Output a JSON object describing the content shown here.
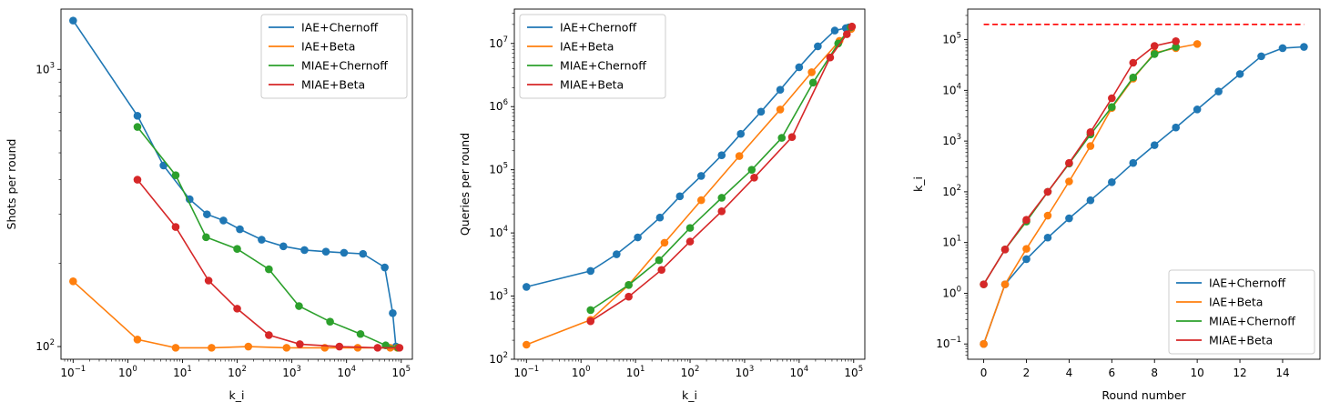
{
  "chart_data": [
    {
      "type": "line",
      "xlabel": "k_i",
      "ylabel": "Shots per round",
      "xscale": "log",
      "yscale": "log",
      "xlim": [
        0.06,
        160000
      ],
      "ylim": [
        90,
        1650
      ],
      "x_ticks": [
        {
          "base": "10",
          "exp": "−1",
          "value": 0.1
        },
        {
          "base": "10",
          "exp": "0",
          "value": 1
        },
        {
          "base": "10",
          "exp": "1",
          "value": 10
        },
        {
          "base": "10",
          "exp": "2",
          "value": 100
        },
        {
          "base": "10",
          "exp": "3",
          "value": 1000
        },
        {
          "base": "10",
          "exp": "4",
          "value": 10000
        },
        {
          "base": "10",
          "exp": "5",
          "value": 100000
        }
      ],
      "y_ticks": [
        {
          "base": "10",
          "exp": "2",
          "value": 100
        },
        {
          "base": "10",
          "exp": "3",
          "value": 1000
        }
      ],
      "legend_position": "upper right",
      "series": [
        {
          "name": "IAE+Chernoff",
          "color": "#1f77b4",
          "x": [
            0.1,
            1.5,
            4.5,
            13.5,
            28,
            56,
            112,
            280,
            700,
            1700,
            4200,
            9000,
            20000,
            50000,
            70000,
            80000
          ],
          "y": [
            1500,
            680,
            450,
            340,
            300,
            285,
            265,
            243,
            230,
            223,
            220,
            218,
            216,
            193,
            132,
            100
          ]
        },
        {
          "name": "IAE+Beta",
          "color": "#ff7f0e",
          "x": [
            0.1,
            1.5,
            7.5,
            34,
            160,
            800,
            4000,
            16000,
            63000,
            85000
          ],
          "y": [
            172,
            106,
            99,
            99,
            100,
            99,
            99,
            99,
            99,
            99
          ]
        },
        {
          "name": "MIAE+Chernoff",
          "color": "#2ca02c",
          "x": [
            1.5,
            7.5,
            27,
            100,
            380,
            1350,
            5000,
            18000,
            52000,
            88000
          ],
          "y": [
            620,
            415,
            248,
            225,
            190,
            140,
            123,
            111,
            101,
            99
          ]
        },
        {
          "name": "MIAE+Beta",
          "color": "#d62728",
          "x": [
            1.5,
            7.5,
            30,
            100,
            380,
            1400,
            7400,
            37000,
            93000
          ],
          "y": [
            400,
            270,
            173,
            137,
            110,
            102,
            100,
            99,
            99
          ]
        }
      ]
    },
    {
      "type": "line",
      "xlabel": "k_i",
      "ylabel": "Queries per round",
      "xscale": "log",
      "yscale": "log",
      "xlim": [
        0.06,
        160000
      ],
      "ylim": [
        100,
        35000000
      ],
      "x_ticks": [
        {
          "base": "10",
          "exp": "−1",
          "value": 0.1
        },
        {
          "base": "10",
          "exp": "0",
          "value": 1
        },
        {
          "base": "10",
          "exp": "1",
          "value": 10
        },
        {
          "base": "10",
          "exp": "2",
          "value": 100
        },
        {
          "base": "10",
          "exp": "3",
          "value": 1000
        },
        {
          "base": "10",
          "exp": "4",
          "value": 10000
        },
        {
          "base": "10",
          "exp": "5",
          "value": 100000
        }
      ],
      "y_ticks": [
        {
          "base": "10",
          "exp": "2",
          "value": 100
        },
        {
          "base": "10",
          "exp": "3",
          "value": 1000
        },
        {
          "base": "10",
          "exp": "4",
          "value": 10000
        },
        {
          "base": "10",
          "exp": "5",
          "value": 100000
        },
        {
          "base": "10",
          "exp": "6",
          "value": 1000000
        },
        {
          "base": "10",
          "exp": "7",
          "value": 10000000
        }
      ],
      "legend_position": "upper left",
      "series": [
        {
          "name": "IAE+Chernoff",
          "color": "#1f77b4",
          "x": [
            0.1,
            1.5,
            4.5,
            11,
            28,
            65,
            160,
            380,
            850,
            2000,
            4500,
            10000,
            22000,
            45000,
            72000,
            82000
          ],
          "y": [
            1400,
            2500,
            4600,
            8500,
            17500,
            38000,
            80000,
            170000,
            370000,
            830000,
            1850000,
            4200000,
            9000000,
            16000000,
            17500000,
            18000000
          ]
        },
        {
          "name": "IAE+Beta",
          "color": "#ff7f0e",
          "x": [
            0.1,
            1.5,
            7.5,
            34,
            160,
            800,
            4500,
            17000,
            55000,
            90000
          ],
          "y": [
            170,
            420,
            1500,
            7000,
            33000,
            165000,
            900000,
            3500000,
            11000000,
            17000000
          ]
        },
        {
          "name": "MIAE+Chernoff",
          "color": "#2ca02c",
          "x": [
            1.5,
            7.5,
            27,
            100,
            380,
            1350,
            4800,
            18000,
            52000,
            88000
          ],
          "y": [
            600,
            1500,
            3700,
            12000,
            36000,
            100000,
            320000,
            2400000,
            10000000,
            18000000
          ]
        },
        {
          "name": "MIAE+Beta",
          "color": "#d62728",
          "x": [
            1.5,
            7.5,
            30,
            100,
            380,
            1500,
            7400,
            37000,
            75000,
            93000
          ],
          "y": [
            400,
            980,
            2600,
            7300,
            22000,
            75000,
            330000,
            6000000,
            14000000,
            18500000
          ]
        }
      ]
    },
    {
      "type": "line",
      "xlabel": "Round number",
      "ylabel": "k_i",
      "xscale": "linear",
      "yscale": "log",
      "xlim": [
        -0.75,
        15.75
      ],
      "ylim": [
        0.05,
        400000
      ],
      "x_ticks": [
        {
          "text": "0",
          "value": 0
        },
        {
          "text": "2",
          "value": 2
        },
        {
          "text": "4",
          "value": 4
        },
        {
          "text": "6",
          "value": 6
        },
        {
          "text": "8",
          "value": 8
        },
        {
          "text": "10",
          "value": 10
        },
        {
          "text": "12",
          "value": 12
        },
        {
          "text": "14",
          "value": 14
        }
      ],
      "y_ticks": [
        {
          "base": "10",
          "exp": "−1",
          "value": 0.1
        },
        {
          "base": "10",
          "exp": "0",
          "value": 1
        },
        {
          "base": "10",
          "exp": "1",
          "value": 10
        },
        {
          "base": "10",
          "exp": "2",
          "value": 100
        },
        {
          "base": "10",
          "exp": "3",
          "value": 1000
        },
        {
          "base": "10",
          "exp": "4",
          "value": 10000
        },
        {
          "base": "10",
          "exp": "5",
          "value": 100000
        }
      ],
      "legend_position": "lower right",
      "reference_line": {
        "y": 200000,
        "x": [
          0,
          15
        ],
        "color": "#ff0000",
        "style": "dashed"
      },
      "series": [
        {
          "name": "IAE+Chernoff",
          "color": "#1f77b4",
          "x": [
            0,
            1,
            2,
            3,
            4,
            5,
            6,
            7,
            8,
            9,
            10,
            11,
            12,
            13,
            14,
            15
          ],
          "y": [
            0.1,
            1.5,
            4.7,
            12.5,
            30,
            68,
            155,
            370,
            830,
            1850,
            4200,
            9500,
            21000,
            47000,
            68000,
            72000
          ]
        },
        {
          "name": "IAE+Beta",
          "color": "#ff7f0e",
          "x": [
            0,
            1,
            2,
            3,
            4,
            5,
            6,
            7,
            8,
            9,
            10
          ],
          "y": [
            0.1,
            1.5,
            7.5,
            34,
            160,
            800,
            4500,
            17000,
            55000,
            68000,
            82000
          ]
        },
        {
          "name": "MIAE+Chernoff",
          "color": "#2ca02c",
          "x": [
            0,
            1,
            2,
            3,
            4,
            5,
            6,
            7,
            8,
            9
          ],
          "y": [
            1.5,
            7.3,
            26,
            100,
            360,
            1350,
            4700,
            18000,
            52000,
            72000
          ]
        },
        {
          "name": "MIAE+Beta",
          "color": "#d62728",
          "x": [
            0,
            1,
            2,
            3,
            4,
            5,
            6,
            7,
            8,
            9
          ],
          "y": [
            1.5,
            7.3,
            28,
            100,
            370,
            1500,
            7000,
            35000,
            75000,
            93000
          ]
        }
      ]
    }
  ]
}
